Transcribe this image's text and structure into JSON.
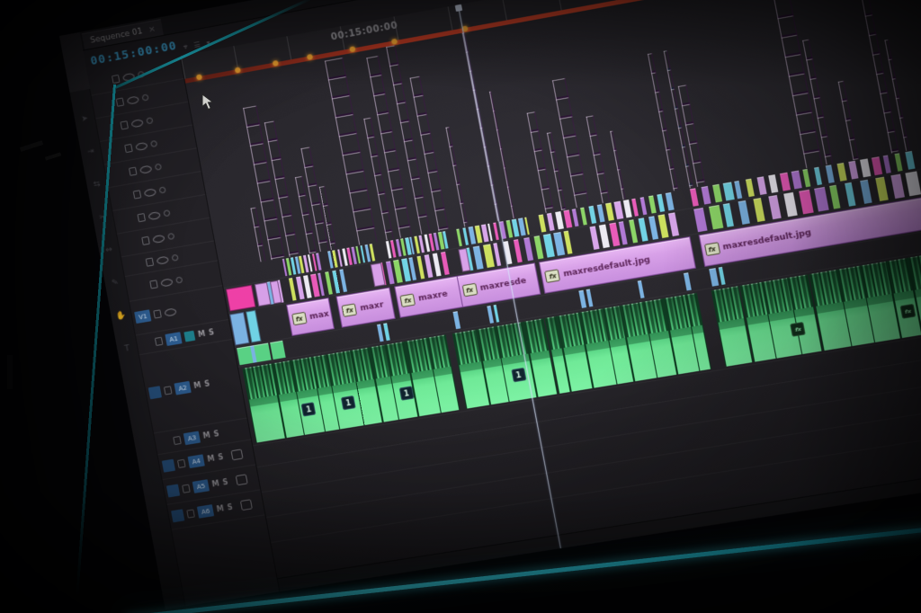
{
  "colors": {
    "bezel_teal": "#1fb7c9",
    "bezel_cyan_bottom": "#3ee0f2",
    "screen_bg": "#262429",
    "clip_violet": "#cb92e2",
    "clip_lavender": "#d79fe8",
    "clip_magenta": "#ee3fa6",
    "clip_blue": "#7ab2e2",
    "clip_cyan": "#6fd2e4",
    "clip_green": "#6fe997",
    "audio_green_dark": "#1e5c36",
    "render_bar_red": "#d1452a",
    "marker_orange": "#f2a430",
    "timecode_blue": "#41aadb",
    "target_blue": "#2e5f94"
  },
  "panel": {
    "tab": {
      "label": "Sequence 01",
      "close_glyph": "×"
    },
    "timecode": "00:15:00:00",
    "toolbar_icons": [
      {
        "name": "snap-icon",
        "glyph": "⌖"
      },
      {
        "name": "timeline-settings-icon",
        "glyph": "☰"
      },
      {
        "name": "marker-menu-icon",
        "glyph": "▾"
      }
    ]
  },
  "tools_panel": {
    "icons": [
      {
        "name": "selection-tool-icon",
        "glyph": "➤"
      },
      {
        "name": "track-select-tool-icon",
        "glyph": "⇥"
      },
      {
        "name": "ripple-edit-tool-icon",
        "glyph": "⇆"
      },
      {
        "name": "razor-tool-icon",
        "glyph": "✂"
      },
      {
        "name": "slip-tool-icon",
        "glyph": "⇔"
      },
      {
        "name": "pen-tool-icon",
        "glyph": "✎"
      },
      {
        "name": "hand-tool-icon",
        "glyph": "✋"
      },
      {
        "name": "type-tool-icon",
        "glyph": "T"
      }
    ]
  },
  "ruler": {
    "timecode_label": "00:15:00:00",
    "marker_dots_pct": [
      1.1,
      4.7,
      8.3,
      11.5,
      15.5,
      19.4,
      25.9
    ],
    "playhead_pct": 25.9
  },
  "track_headers": {
    "mute_label": "M",
    "solo_label": "S",
    "video_thin_rows": [
      {
        "icons": [
          "lock",
          "eye",
          "dot"
        ]
      },
      {
        "icons": [
          "lock",
          "eye",
          "dot"
        ]
      },
      {
        "icons": [
          "lock",
          "eye",
          "dot"
        ]
      },
      {
        "icons": [
          "lock",
          "eye",
          "dot"
        ]
      },
      {
        "icons": [
          "lock",
          "eye",
          "dot"
        ]
      },
      {
        "icons": [
          "lock",
          "eye",
          "dot"
        ]
      },
      {
        "icons": [
          "lock",
          "eye",
          "dot"
        ]
      },
      {
        "icons": [
          "lock",
          "eye",
          "dot"
        ]
      }
    ],
    "v3": {
      "icons": [
        "lock",
        "eye",
        "dot"
      ]
    },
    "v2": {
      "icons": [
        "lock",
        "eye",
        "dot"
      ]
    },
    "v1": {
      "label": "V1",
      "icons": [
        "lock",
        "eye"
      ]
    },
    "audio_rows": [
      {
        "label": "A1",
        "src": false,
        "sync": true,
        "buttons": [
          "M",
          "S"
        ],
        "opt": false
      },
      {
        "label": "A2",
        "src": true,
        "sync": false,
        "buttons": [
          "M",
          "S"
        ],
        "opt": false
      },
      {
        "label": "A3",
        "src": false,
        "sync": false,
        "buttons": [
          "M",
          "S"
        ],
        "opt": false
      },
      {
        "label": "A4",
        "src": true,
        "sync": false,
        "buttons": [
          "M",
          "S"
        ],
        "opt": true
      },
      {
        "label": "A5",
        "src": true,
        "sync": false,
        "buttons": [
          "M",
          "S"
        ],
        "opt": true
      },
      {
        "label": "A6",
        "src": true,
        "sync": false,
        "buttons": [
          "M",
          "S"
        ],
        "opt": true
      }
    ]
  },
  "timeline": {
    "stripe_palette": [
      "#d7a4ea",
      "#b077d4",
      "#7ab2e2",
      "#eceaf2",
      "#8ad464",
      "#cde05c",
      "#e858b8",
      "#6fd2e4"
    ],
    "towers": [
      [
        3.8,
        0.5,
        60,
        "v"
      ],
      [
        4.8,
        1.3,
        170,
        "v"
      ],
      [
        6.5,
        0.95,
        150,
        "v"
      ],
      [
        8.4,
        0.65,
        85,
        "v"
      ],
      [
        9.4,
        0.8,
        115,
        "v"
      ],
      [
        10.4,
        0.5,
        70,
        "v"
      ],
      [
        13,
        1.75,
        205,
        "v"
      ],
      [
        15.6,
        0.65,
        135,
        "v"
      ],
      [
        16.8,
        1.15,
        200,
        "v"
      ],
      [
        18.8,
        0.8,
        208,
        "v"
      ],
      [
        20.4,
        0.95,
        170,
        "v"
      ],
      [
        22.8,
        0.3,
        110,
        "v"
      ],
      [
        25.8,
        0.3,
        208,
        "v"
      ],
      [
        27.2,
        0.25,
        140,
        "v"
      ],
      [
        30.2,
        0.8,
        110,
        "v"
      ],
      [
        31.6,
        0.5,
        85,
        "v"
      ],
      [
        33,
        1.15,
        140,
        "v"
      ],
      [
        35.4,
        0.65,
        95,
        "v"
      ],
      [
        37.2,
        0.3,
        75,
        "v"
      ],
      [
        41.8,
        0.45,
        150,
        "v"
      ],
      [
        43.2,
        0.35,
        150,
        "b"
      ],
      [
        43.9,
        0.8,
        110,
        "v"
      ],
      [
        53.6,
        1.45,
        205,
        "v"
      ],
      [
        55.4,
        0.65,
        135,
        "v"
      ],
      [
        57.8,
        0.45,
        85,
        "v"
      ],
      [
        61.2,
        0.65,
        170,
        "v"
      ],
      [
        62.4,
        0.4,
        120,
        "v"
      ]
    ],
    "v3_stripe_clusters": [
      [
        5.8,
        9.4,
        9
      ],
      [
        10.1,
        14.4,
        10
      ],
      [
        15.5,
        21.2,
        13
      ],
      [
        22,
        28.8,
        12
      ],
      [
        29.5,
        41.8,
        16
      ],
      [
        43.2,
        63.4,
        20
      ]
    ],
    "v2_stripe_clusters": [
      [
        3.2,
        5.4,
        5
      ],
      [
        6.1,
        11.5,
        8
      ],
      [
        14.4,
        20.9,
        9
      ],
      [
        22.3,
        32.4,
        11
      ],
      [
        33.8,
        41.8,
        9
      ],
      [
        43.2,
        63.4,
        15
      ]
    ],
    "v2_chunks": [
      [
        0.15,
        2.5,
        "#ee3fa6"
      ],
      [
        2.9,
        1.15,
        "#d79fe8"
      ],
      [
        4.3,
        0.8,
        "#d79fe8"
      ],
      [
        13.7,
        1.0,
        "#d79fe8"
      ],
      [
        21.8,
        0.8,
        "#d79fe8"
      ]
    ],
    "v1_chunks": [
      [
        0.1,
        1.3,
        "#7ab2e2"
      ],
      [
        1.6,
        0.9,
        "#6fd2e4"
      ]
    ],
    "v1_clips": [
      [
        5.4,
        4.0,
        "max"
      ],
      [
        10.1,
        5.0,
        "maxr"
      ],
      [
        15.5,
        6.8,
        "maxre"
      ],
      [
        21.2,
        7.2,
        "maxresde"
      ],
      [
        28.8,
        13.7,
        "maxresdefault.jpg"
      ],
      [
        43.2,
        27.4,
        "maxresdefault.jpg"
      ]
    ],
    "fx_badge_label": "fx",
    "a1_clips": [
      [
        0.2,
        2.9,
        "#59d184"
      ],
      [
        3.3,
        1.2,
        "#59d184"
      ],
      [
        1.4,
        0.36,
        "#7ab2e2"
      ],
      [
        13.3,
        0.36,
        "#7ab2e2"
      ],
      [
        13.9,
        0.3,
        "#6fd2e4"
      ],
      [
        20.3,
        0.43,
        "#7ab2e2"
      ],
      [
        23.4,
        0.36,
        "#7ab2e2"
      ],
      [
        24.0,
        0.3,
        "#6fd2e4"
      ],
      [
        31.8,
        0.43,
        "#7ab2e2"
      ],
      [
        32.5,
        0.3,
        "#7ab2e2"
      ],
      [
        37.1,
        0.36,
        "#7ab2e2"
      ],
      [
        41.3,
        0.43,
        "#7ab2e2"
      ],
      [
        43.6,
        0.58,
        "#7ab2e2"
      ],
      [
        44.4,
        0.36,
        "#6fd2e4"
      ]
    ],
    "a2_clips": [
      [
        0.36,
        2.6
      ],
      [
        3.1,
        1.6
      ],
      [
        4.8,
        1.9
      ],
      [
        6.8,
        1.2
      ],
      [
        8.1,
        2.2
      ],
      [
        10.4,
        1.6
      ],
      [
        12.2,
        1.3
      ],
      [
        13.6,
        1.7
      ],
      [
        15.5,
        1.9
      ],
      [
        17.5,
        1.6
      ],
      [
        19.9,
        2.0
      ],
      [
        22.1,
        1.6
      ],
      [
        23.8,
        2.4
      ],
      [
        26.4,
        1.7
      ],
      [
        28.3,
        1.0
      ],
      [
        29.4,
        1.9
      ],
      [
        31.5,
        2.0
      ],
      [
        33.6,
        1.4
      ],
      [
        35.2,
        1.9
      ],
      [
        37.2,
        1.7
      ],
      [
        39.1,
        1.9
      ],
      [
        41.0,
        1.0
      ],
      [
        43.4,
        2.3
      ],
      [
        45.9,
        1.9
      ],
      [
        47.9,
        2.2
      ],
      [
        50.2,
        1.7
      ],
      [
        52.1,
        2.4
      ],
      [
        54.6,
        1.9
      ],
      [
        56.6,
        2.2
      ],
      [
        59.0,
        1.7
      ],
      [
        60.8,
        2.3
      ],
      [
        63.3,
        2.5
      ],
      [
        65.9,
        2.2
      ],
      [
        68.2,
        2.3
      ]
    ],
    "a2_num_badges": {
      "label": "1",
      "positions_pct": [
        5.1,
        8.8,
        14.2,
        24.5
      ]
    },
    "a2_fx_badges": {
      "label": "fx",
      "positions_pct": [
        49.7,
        59.4,
        61.9
      ]
    }
  }
}
